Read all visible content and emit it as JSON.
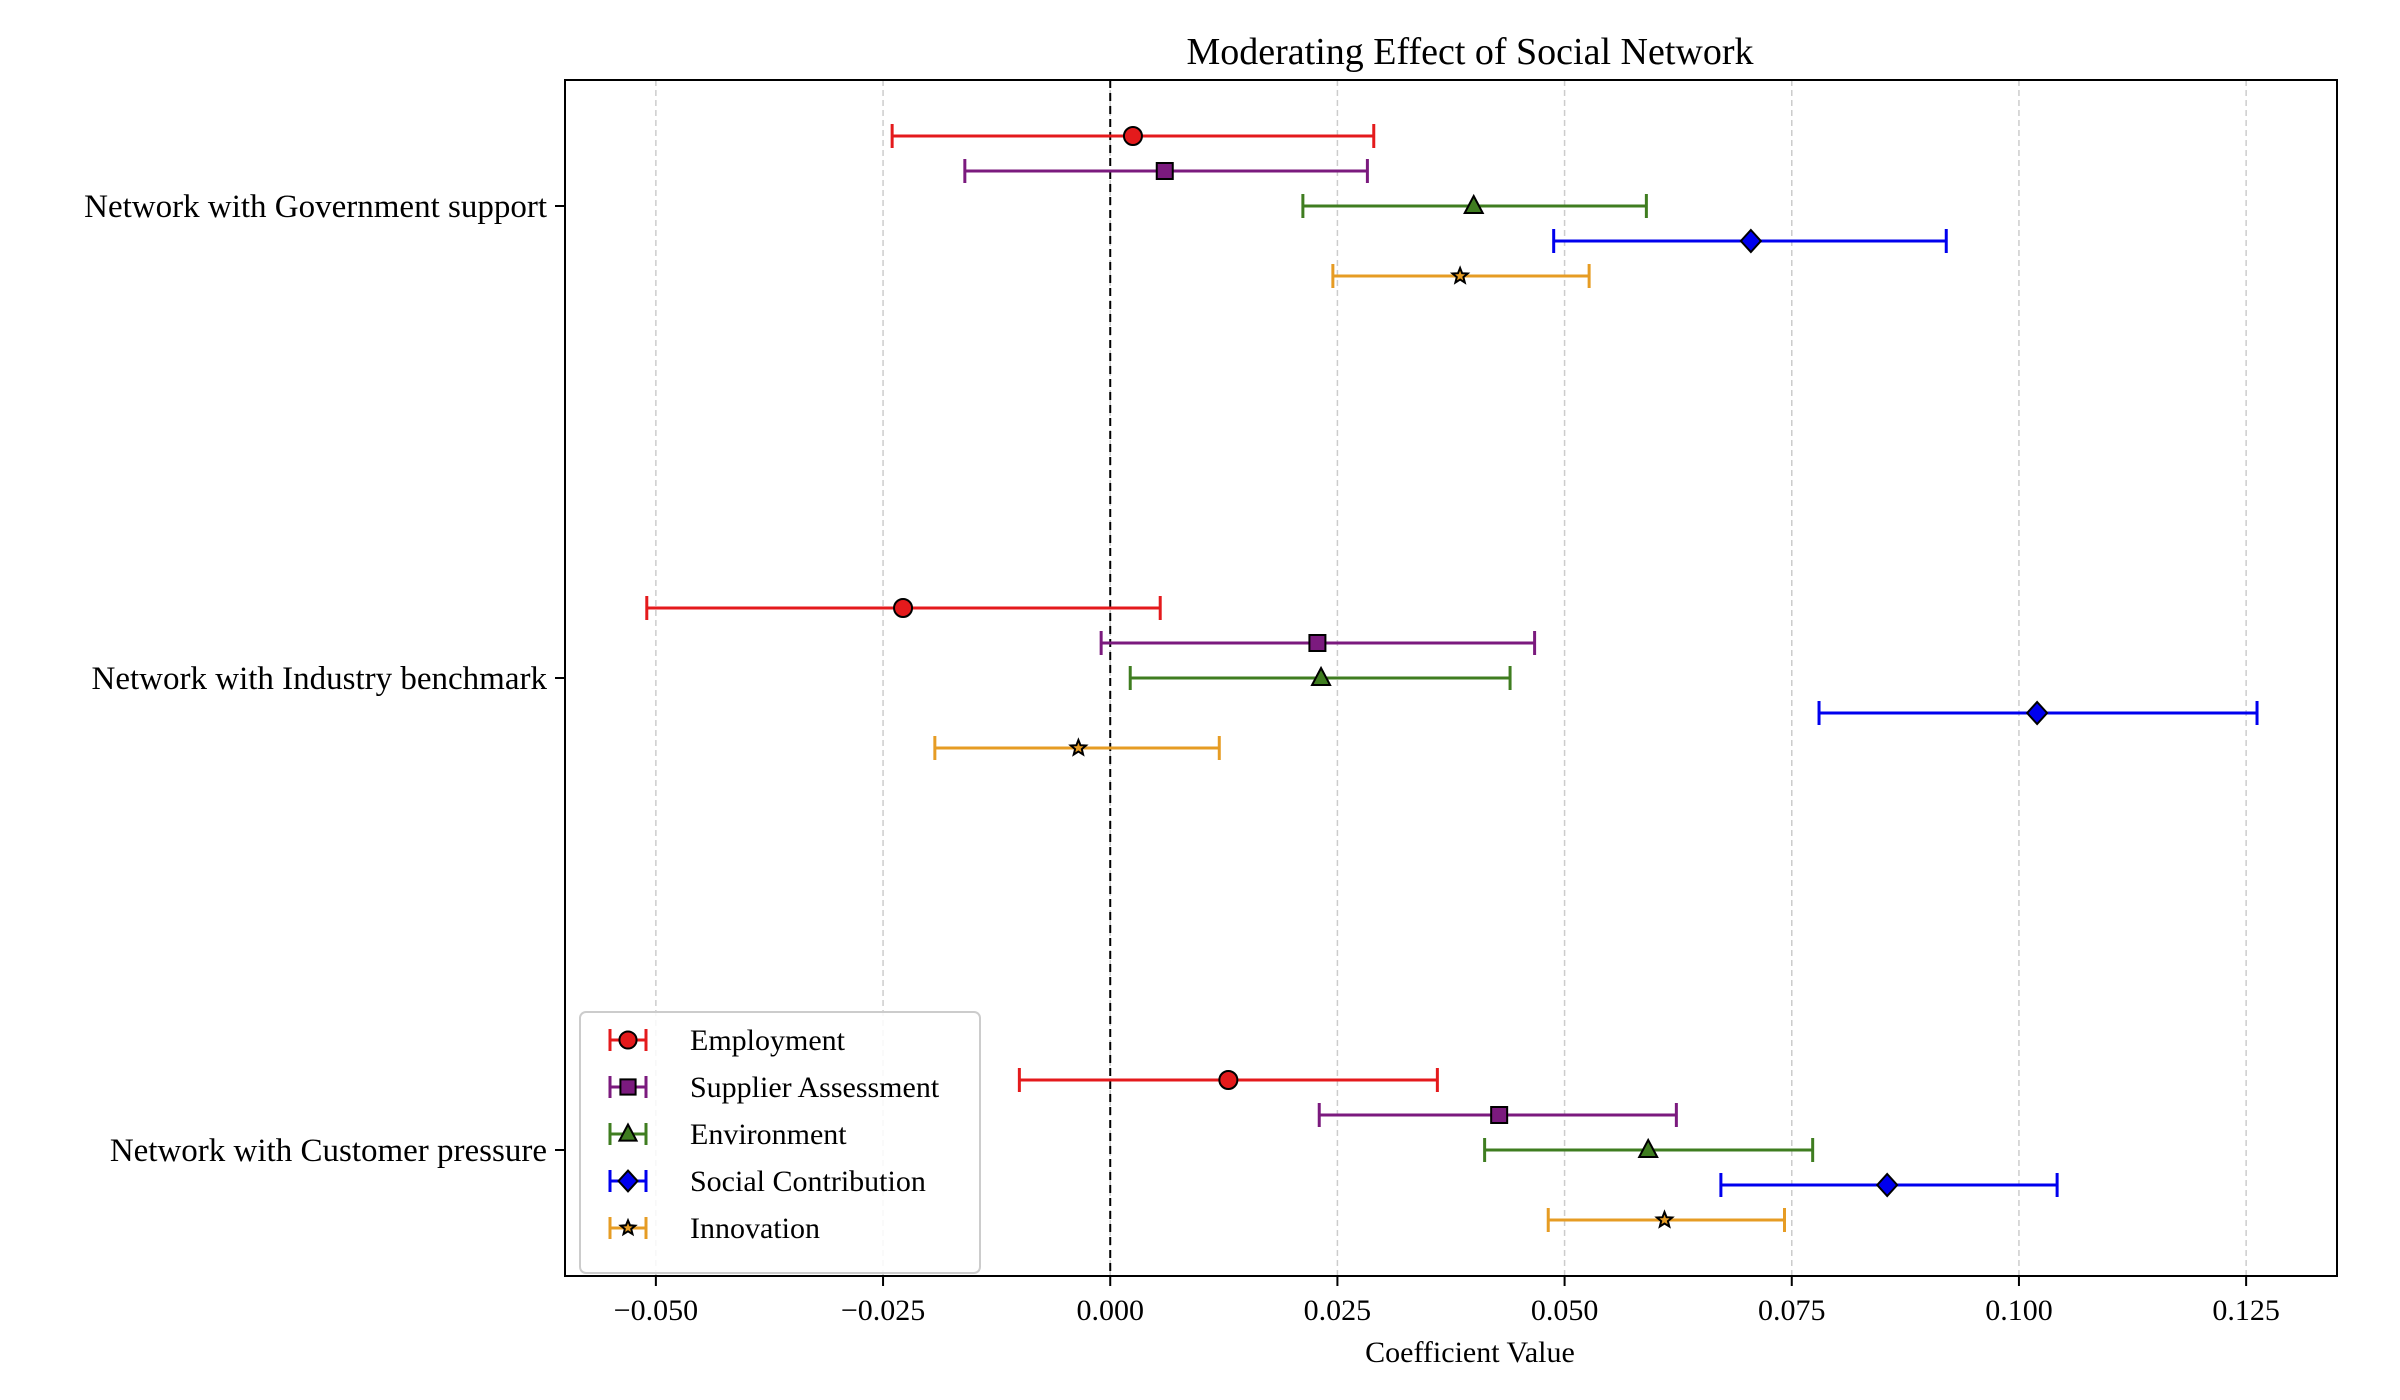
{
  "chart_data": {
    "type": "errorbar",
    "title": "Moderating Effect of Social Network",
    "xlabel": "Coefficient Value",
    "ylabel": "",
    "xlim": [
      -0.06,
      0.135
    ],
    "xticks": [
      -0.05,
      -0.025,
      0.0,
      0.025,
      0.05,
      0.075,
      0.1,
      0.125
    ],
    "xtick_labels": [
      "−0.050",
      "−0.025",
      "0.000",
      "0.025",
      "0.050",
      "0.075",
      "0.100",
      "0.125"
    ],
    "grid": "vertical dashed",
    "reference_line": 0.0,
    "legend_position": "lower-left",
    "categories": [
      "Network with Government support",
      "Network with Industry benchmark",
      "Network with Customer pressure"
    ],
    "series": [
      {
        "name": "Employment",
        "color": "#e41a1c",
        "marker": "circle",
        "coef": [
          0.0025,
          -0.0228,
          0.013
        ],
        "ci_low": [
          -0.024,
          -0.051,
          -0.01
        ],
        "ci_high": [
          0.029,
          0.0055,
          0.036
        ]
      },
      {
        "name": "Supplier Assessment",
        "color": "#7b1a7e",
        "marker": "square",
        "coef": [
          0.006,
          0.0228,
          0.0428
        ],
        "ci_low": [
          -0.016,
          -0.001,
          0.023
        ],
        "ci_high": [
          0.0283,
          0.0467,
          0.0623
        ]
      },
      {
        "name": "Environment",
        "color": "#3f7d20",
        "marker": "triangle",
        "coef": [
          0.04,
          0.0232,
          0.0592
        ],
        "ci_low": [
          0.0212,
          0.0022,
          0.0412
        ],
        "ci_high": [
          0.059,
          0.044,
          0.0773
        ]
      },
      {
        "name": "Social Contribution",
        "color": "#0000ee",
        "marker": "diamond",
        "coef": [
          0.0705,
          0.102,
          0.0855
        ],
        "ci_low": [
          0.0488,
          0.078,
          0.0672
        ],
        "ci_high": [
          0.092,
          0.1262,
          0.1042
        ]
      },
      {
        "name": "Innovation",
        "color": "#e69c24",
        "marker": "star",
        "coef": [
          0.0385,
          -0.0035,
          0.061
        ],
        "ci_low": [
          0.0245,
          -0.0193,
          0.0482
        ],
        "ci_high": [
          0.0527,
          0.012,
          0.0742
        ]
      }
    ]
  }
}
